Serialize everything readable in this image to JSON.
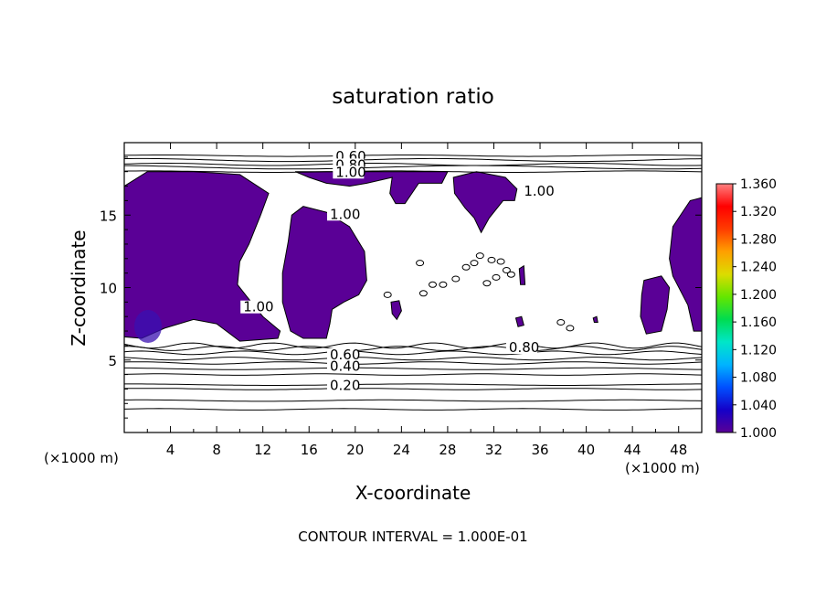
{
  "chart_data": {
    "type": "heatmap",
    "title": "saturation ratio",
    "xlabel": "X-coordinate",
    "ylabel": "Z-coordinate",
    "x_unit_left": "(×1000 m)",
    "x_unit_right": "(×1000 m)",
    "footer": "CONTOUR INTERVAL = 1.000E-01",
    "xlim": [
      0,
      50
    ],
    "ylim": [
      0,
      20
    ],
    "x_ticks": [
      4,
      8,
      12,
      16,
      20,
      24,
      28,
      32,
      36,
      40,
      44,
      48
    ],
    "y_ticks": [
      5,
      10,
      15
    ],
    "colorbar": {
      "min": 1.0,
      "max": 1.36,
      "labels": [
        "1.360",
        "1.320",
        "1.280",
        "1.240",
        "1.200",
        "1.160",
        "1.120",
        "1.080",
        "1.040",
        "1.000"
      ],
      "colors": [
        "#5a0096",
        "#1400c8",
        "#0050ff",
        "#00b4ff",
        "#00e6c8",
        "#00dc50",
        "#64e600",
        "#dcdc00",
        "#ffa000",
        "#ff3c00",
        "#ff0000",
        "#ff8080"
      ]
    },
    "contour_labels": [
      {
        "text": "0.60",
        "x": 18.3,
        "z": 19.0
      },
      {
        "text": "0.80",
        "x": 18.3,
        "z": 18.4
      },
      {
        "text": "1.00",
        "x": 18.3,
        "z": 17.9
      },
      {
        "text": "1.00",
        "x": 17.8,
        "z": 15.0
      },
      {
        "text": "1.00",
        "x": 34.6,
        "z": 16.6
      },
      {
        "text": "1.00",
        "x": 10.3,
        "z": 8.6
      },
      {
        "text": "0.60",
        "x": 17.8,
        "z": 5.3
      },
      {
        "text": "0.40",
        "x": 17.8,
        "z": 4.5
      },
      {
        "text": "0.20",
        "x": 17.8,
        "z": 3.2
      },
      {
        "text": "0.80",
        "x": 33.3,
        "z": 5.8
      }
    ],
    "supersaturated_regions": [
      [
        [
          0,
          17
        ],
        [
          2,
          18
        ],
        [
          6,
          18
        ],
        [
          10,
          17.8
        ],
        [
          12.5,
          16.5
        ],
        [
          11.8,
          15
        ],
        [
          10.8,
          13
        ],
        [
          10,
          11.8
        ],
        [
          9.8,
          10.2
        ],
        [
          11,
          9
        ],
        [
          12,
          8
        ],
        [
          13.5,
          7
        ],
        [
          13.3,
          6.5
        ],
        [
          10,
          6.3
        ],
        [
          8,
          7.5
        ],
        [
          6,
          7.8
        ],
        [
          3.5,
          7.2
        ],
        [
          1.5,
          6.5
        ],
        [
          0,
          6.6
        ]
      ],
      [
        [
          14.5,
          15
        ],
        [
          15.5,
          15.6
        ],
        [
          17.5,
          15.2
        ],
        [
          19.5,
          14.2
        ],
        [
          20.8,
          12.5
        ],
        [
          21,
          10.5
        ],
        [
          20.3,
          9.5
        ],
        [
          19,
          9
        ],
        [
          18,
          8.5
        ],
        [
          17.8,
          7.5
        ],
        [
          17.5,
          6.5
        ],
        [
          15.5,
          6.5
        ],
        [
          14.4,
          7
        ],
        [
          13.7,
          9
        ],
        [
          13.7,
          11
        ],
        [
          14.2,
          13.2
        ]
      ],
      [
        [
          14.8,
          18
        ],
        [
          28,
          18
        ],
        [
          27.5,
          17.2
        ],
        [
          25.5,
          17.2
        ],
        [
          24.3,
          15.8
        ],
        [
          23.5,
          15.8
        ],
        [
          23,
          16.5
        ],
        [
          23.2,
          17.6
        ],
        [
          21,
          17.2
        ],
        [
          19.5,
          17
        ],
        [
          17.5,
          17.2
        ],
        [
          16,
          17.6
        ]
      ],
      [
        [
          28.5,
          17.6
        ],
        [
          30.5,
          18
        ],
        [
          33,
          17.6
        ],
        [
          34,
          16.8
        ],
        [
          33.8,
          16
        ],
        [
          32.8,
          16
        ],
        [
          31.6,
          14.8
        ],
        [
          30.9,
          13.8
        ],
        [
          30.3,
          14.8
        ],
        [
          29.5,
          15.5
        ],
        [
          28.6,
          16.5
        ]
      ],
      [
        [
          47.5,
          14.2
        ],
        [
          49,
          16
        ],
        [
          50,
          16.2
        ],
        [
          50,
          7
        ],
        [
          49.3,
          7
        ],
        [
          48.8,
          8.8
        ],
        [
          47.5,
          10.8
        ],
        [
          47.2,
          12
        ]
      ],
      [
        [
          45,
          10.5
        ],
        [
          46.5,
          10.8
        ],
        [
          47.2,
          10
        ],
        [
          47,
          8.5
        ],
        [
          46.5,
          7
        ],
        [
          45.2,
          6.8
        ],
        [
          44.7,
          8
        ],
        [
          44.8,
          9.5
        ]
      ],
      [
        [
          23.1,
          9
        ],
        [
          23.8,
          9.1
        ],
        [
          24,
          8.4
        ],
        [
          23.6,
          7.8
        ],
        [
          23.2,
          8.2
        ]
      ],
      [
        [
          33.9,
          7.9
        ],
        [
          34.4,
          8
        ],
        [
          34.6,
          7.4
        ],
        [
          34.1,
          7.3
        ]
      ],
      [
        [
          40.6,
          7.9
        ],
        [
          40.9,
          8
        ],
        [
          41,
          7.6
        ],
        [
          40.7,
          7.6
        ]
      ],
      [
        [
          34.2,
          11.3
        ],
        [
          34.6,
          11.5
        ],
        [
          34.7,
          10.2
        ],
        [
          34.3,
          10.2
        ]
      ]
    ]
  }
}
